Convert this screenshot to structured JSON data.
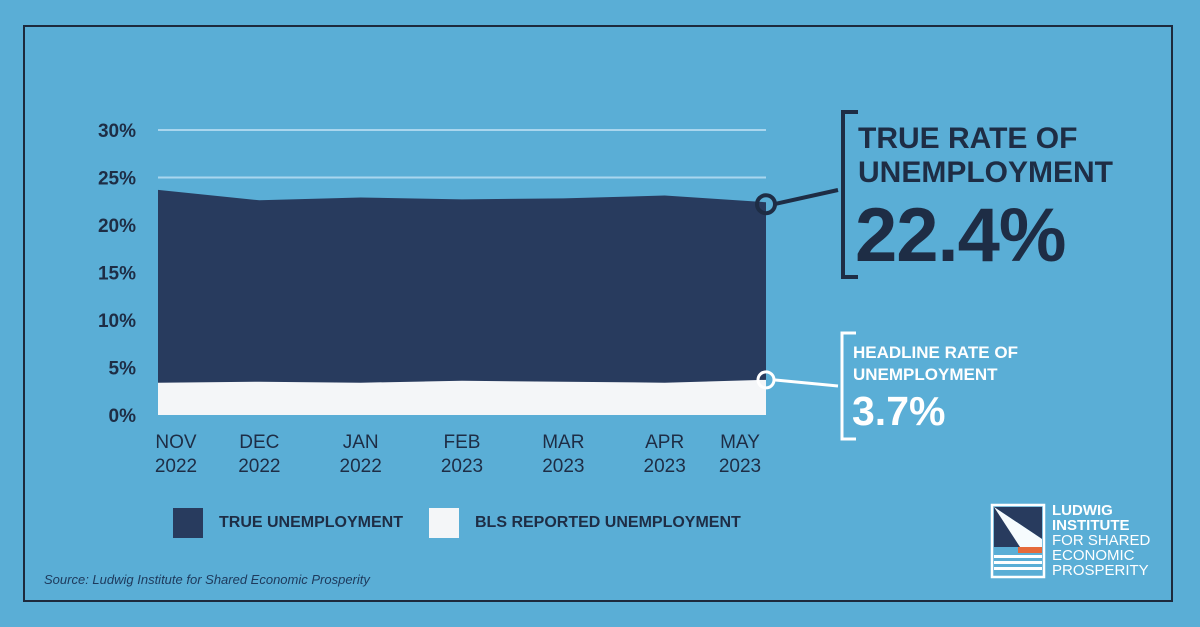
{
  "colors": {
    "background": "#5aaed6",
    "true_unemployment": "#283b5e",
    "bls_unemployment": "#f4f6f8",
    "text_dark": "#1e2d45",
    "text_light": "#ffffff",
    "accent_orange": "#e56a3a"
  },
  "chart_data": {
    "type": "area",
    "x": [
      "NOV\n2022",
      "DEC\n2022",
      "JAN\n2022",
      "FEB\n2023",
      "MAR\n2023",
      "APR\n2023",
      "MAY\n2023"
    ],
    "x_labels": [
      {
        "line1": "NOV",
        "line2": "2022"
      },
      {
        "line1": "DEC",
        "line2": "2022"
      },
      {
        "line1": "JAN",
        "line2": "2022"
      },
      {
        "line1": "FEB",
        "line2": "2023"
      },
      {
        "line1": "MAR",
        "line2": "2023"
      },
      {
        "line1": "APR",
        "line2": "2023"
      },
      {
        "line1": "MAY",
        "line2": "2023"
      }
    ],
    "y_ticks": [
      "0%",
      "5%",
      "10%",
      "15%",
      "20%",
      "25%",
      "30%"
    ],
    "ylim": [
      0,
      30
    ],
    "series": [
      {
        "name": "TRUE UNEMPLOYMENT",
        "values": [
          23.7,
          22.6,
          22.9,
          22.7,
          22.8,
          23.1,
          22.4
        ]
      },
      {
        "name": "BLS REPORTED UNEMPLOYMENT",
        "values": [
          3.4,
          3.5,
          3.4,
          3.6,
          3.5,
          3.4,
          3.7
        ]
      }
    ],
    "grid": true
  },
  "callouts": {
    "true_rate": {
      "title": "TRUE RATE OF\nUNEMPLOYMENT",
      "value": "22.4%"
    },
    "headline_rate": {
      "title": "HEADLINE RATE OF\nUNEMPLOYMENT",
      "value": "3.7%"
    }
  },
  "legend": {
    "true_label": "TRUE UNEMPLOYMENT",
    "bls_label": "BLS REPORTED UNEMPLOYMENT"
  },
  "source": "Source: Ludwig Institute for Shared Economic Prosperity",
  "logo": {
    "line1": "LUDWIG",
    "line2": "INSTITUTE",
    "line3": "FOR SHARED",
    "line4": "ECONOMIC",
    "line5": "PROSPERITY"
  }
}
